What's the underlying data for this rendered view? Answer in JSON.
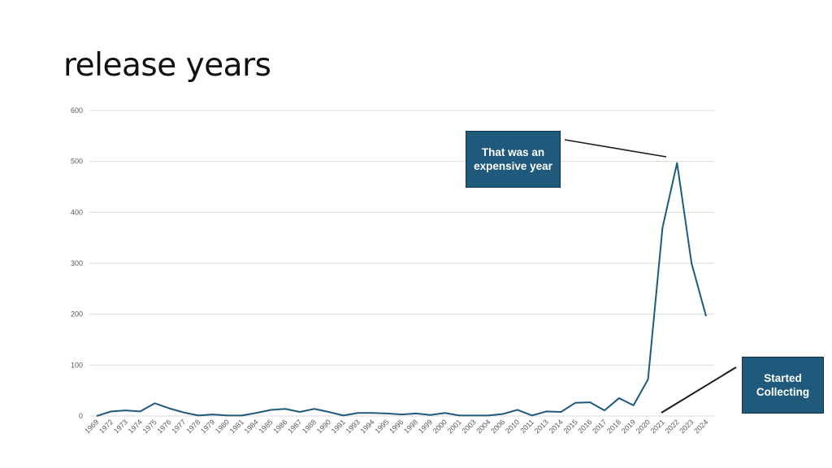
{
  "slide": {
    "title": "release years"
  },
  "annotations": {
    "expensive": "That was an expensive year",
    "started": "Started Collecting"
  },
  "colors": {
    "line": "#1f5a7c",
    "grid": "#d9d9d9",
    "callout_bg": "#1f5a7c",
    "axis_text": "#595959"
  },
  "chart_data": {
    "type": "line",
    "title": "",
    "xlabel": "",
    "ylabel": "",
    "ylim": [
      0,
      600
    ],
    "yticks": [
      0,
      100,
      200,
      300,
      400,
      500,
      600
    ],
    "grid": true,
    "legend": "none",
    "categories": [
      "1969",
      "1972",
      "1973",
      "1974",
      "1975",
      "1976",
      "1977",
      "1978",
      "1979",
      "1980",
      "1981",
      "1984",
      "1985",
      "1986",
      "1987",
      "1988",
      "1990",
      "1991",
      "1993",
      "1994",
      "1995",
      "1996",
      "1998",
      "1999",
      "2000",
      "2001",
      "2003",
      "2004",
      "2006",
      "2010",
      "2011",
      "2013",
      "2014",
      "2015",
      "2016",
      "2017",
      "2018",
      "2019",
      "2020",
      "2021",
      "2022",
      "2023",
      "2024"
    ],
    "series": [
      {
        "values": [
          0,
          9,
          11,
          9,
          25,
          15,
          7,
          1,
          3,
          1,
          1,
          6,
          12,
          14,
          8,
          14,
          8,
          1,
          6,
          6,
          5,
          3,
          5,
          2,
          6,
          1,
          1,
          1,
          4,
          12,
          1,
          9,
          8,
          26,
          27,
          11,
          35,
          21,
          72,
          370,
          497,
          300,
          196
        ]
      }
    ]
  }
}
